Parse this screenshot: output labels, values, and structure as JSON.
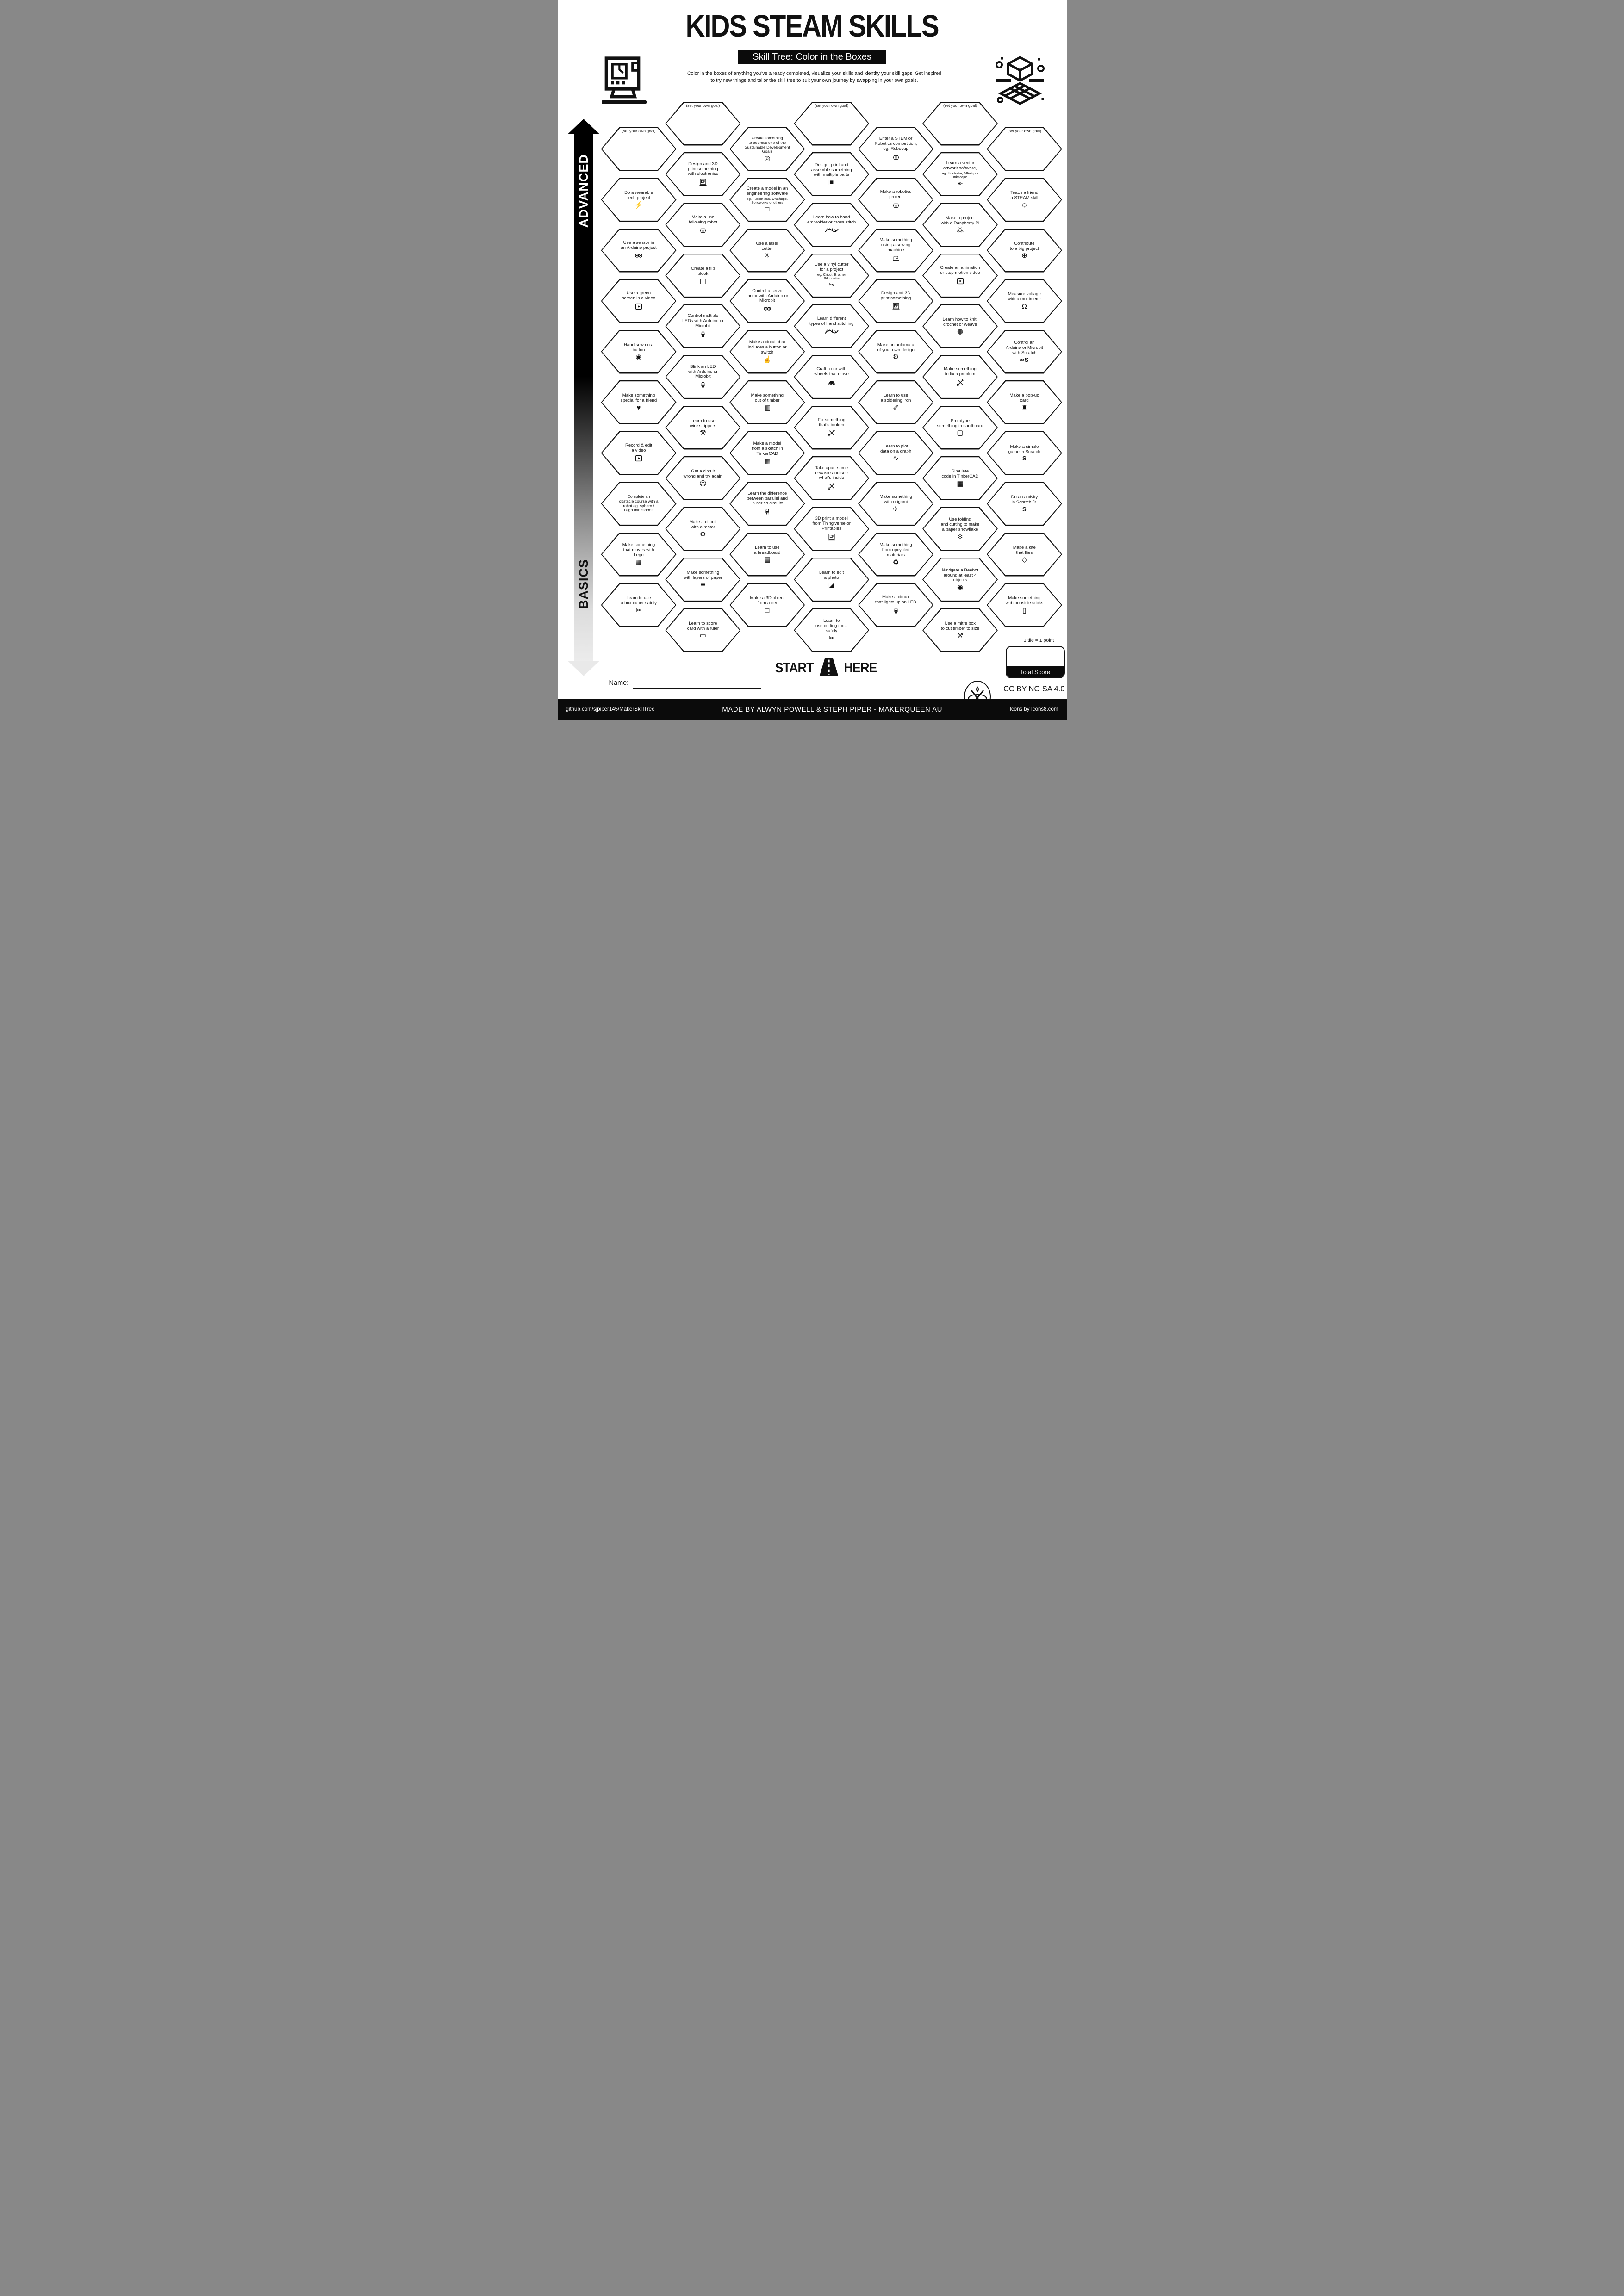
{
  "header": {
    "title": "KIDS STEAM SKILLS",
    "subtitle": "Skill Tree: Color in the Boxes",
    "description_line1": "Color in the boxes of anything you've already completed, visualize your skills and identify your skill gaps.  Get inspired",
    "description_line2": "to try new things and tailor the skill tree to suit your own journey by swapping in your own goals."
  },
  "axis": {
    "advanced_label": "ADVANCED",
    "basics_label": "BASICS"
  },
  "start_here": {
    "start": "START",
    "here": "HERE"
  },
  "name_label": "Name:",
  "score": {
    "tile_note": "1 tile = 1 point",
    "total_label": "Total Score"
  },
  "license": "CC BY-NC-SA 4.0",
  "footer": {
    "github": "github.com/sjpiper145/MakerSkillTree",
    "made_by": "MADE BY ALWYN POWELL & STEPH PIPER  -  MAKERQUEEN AU",
    "icons_credit": "Icons by Icons8.com"
  },
  "colors": {
    "ink": "#111111",
    "paper": "#ffffff"
  },
  "hexes": [
    {
      "col": 0,
      "row": 0,
      "goal": true,
      "label": "(set your own goal)",
      "icon": null
    },
    {
      "col": 0,
      "row": 1,
      "label": "Do a wearable\ntech project",
      "icon": "led-lightning-icon"
    },
    {
      "col": 0,
      "row": 2,
      "label": "Use a sensor in\nan Arduino project",
      "icon": "arduino-icon"
    },
    {
      "col": 0,
      "row": 3,
      "label": "Use a green\nscreen in a video",
      "icon": "video-player-icon"
    },
    {
      "col": 0,
      "row": 4,
      "label": "Hand sew on a\nbutton",
      "icon": "button-icon"
    },
    {
      "col": 0,
      "row": 5,
      "label": "Make something\nspecial for a friend",
      "icon": "ribbon-bow-icon"
    },
    {
      "col": 0,
      "row": 6,
      "label": "Record & edit\na video",
      "icon": "video-player-icon"
    },
    {
      "col": 0,
      "row": 7,
      "label": "Complete an\nobstacle course with a\nrobot eg. sphero /\nLego mindsorms",
      "icon": null
    },
    {
      "col": 0,
      "row": 8,
      "label": "Make something\nthat moves with\nLego",
      "icon": "lego-brick-icon"
    },
    {
      "col": 0,
      "row": 9,
      "label": "Learn to use\na box cutter safely",
      "icon": "box-cutter-icon"
    },
    {
      "col": 1,
      "row": 0,
      "goal": true,
      "label": "(set your own goal)",
      "icon": null
    },
    {
      "col": 1,
      "row": 1,
      "label": "Design and 3D\nprint something\nwith electronics",
      "icon": "led-and-printer-icon"
    },
    {
      "col": 1,
      "row": 2,
      "label": "Make a line\nfollowing robot",
      "icon": "robot-icon"
    },
    {
      "col": 1,
      "row": 3,
      "label": "Create a flip\nblook",
      "icon": "flip-book-icon"
    },
    {
      "col": 1,
      "row": 4,
      "label": "Control multiple\nLEDs with Arduino or\nMicrobit",
      "icon": "leds-icon"
    },
    {
      "col": 1,
      "row": 5,
      "label": "Blink an LED\nwith Arduino or\nMicrobit",
      "icon": "led-arduino-icon"
    },
    {
      "col": 1,
      "row": 6,
      "label": "Learn to use\nwire strippers",
      "icon": "wire-strippers-icon"
    },
    {
      "col": 1,
      "row": 7,
      "label": "Get a circuit\nwrong and try again",
      "icon": "facepalm-icon"
    },
    {
      "col": 1,
      "row": 8,
      "label": "Make a circuit\nwith a motor",
      "icon": "motor-icon"
    },
    {
      "col": 1,
      "row": 9,
      "label": "Make something\nwith layers of paper",
      "icon": "paper-layers-icon"
    },
    {
      "col": 1,
      "row": 10,
      "label": "Learn to score\ncard with a ruler",
      "icon": "ruler-icon"
    },
    {
      "col": 2,
      "row": 0,
      "label": "Create something\nto address one of the\nSustainable Development\nGoals",
      "icon": "sdg-ring-icon"
    },
    {
      "col": 2,
      "row": 1,
      "label": "Create a model in an\nengineering software",
      "sub": "eg. Fusion 360, OnShape,\nSolidworks or others",
      "icon": "cad-cube-icon"
    },
    {
      "col": 2,
      "row": 2,
      "label": "Use a laser\ncutter",
      "icon": "laser-icon"
    },
    {
      "col": 2,
      "row": 3,
      "label": "Control a servo\nmotor with Arduino or\nMicrobit",
      "icon": "arduino-icon"
    },
    {
      "col": 2,
      "row": 4,
      "label": "Make a circuit that\nincludes a button or\nswitch",
      "icon": "press-button-icon"
    },
    {
      "col": 2,
      "row": 5,
      "label": "Make something\nout of timber",
      "icon": "timber-icon"
    },
    {
      "col": 2,
      "row": 6,
      "label": "Make a model\nfrom a sketch in\nTinkerCAD",
      "icon": "tinkercad-icon"
    },
    {
      "col": 2,
      "row": 7,
      "label": "Learn the difference\nbetween parallel and\nin-series circuits",
      "icon": "led-icon"
    },
    {
      "col": 2,
      "row": 8,
      "label": "Learn to use\na breadboard",
      "icon": "breadboard-icon"
    },
    {
      "col": 2,
      "row": 9,
      "label": "Make a 3D object\nfrom a net",
      "icon": "net-cube-icon"
    },
    {
      "col": 3,
      "row": 0,
      "goal": true,
      "label": "(set your own goal)",
      "icon": null
    },
    {
      "col": 3,
      "row": 1,
      "label": "Design, print and\nassemble something\nwith multiple parts",
      "icon": "cubes-icon"
    },
    {
      "col": 3,
      "row": 2,
      "label": "Learn how to hand\nembroider or cross stitch",
      "icon": "stitch-icon"
    },
    {
      "col": 3,
      "row": 3,
      "label": "Use a vinyl cutter\nfor a project",
      "sub": "eg. Cricut, Brother\nSilhouette",
      "icon": "vinyl-cutter-icon"
    },
    {
      "col": 3,
      "row": 4,
      "label": "Learn different\ntypes of hand stitching",
      "icon": "stitch-icon"
    },
    {
      "col": 3,
      "row": 5,
      "label": "Craft a car with\nwheels that move",
      "icon": "car-icon"
    },
    {
      "col": 3,
      "row": 6,
      "label": "Fix something\nthat's broken",
      "icon": "tools-icon"
    },
    {
      "col": 3,
      "row": 7,
      "label": "Take apart some\ne-waste and see\nwhat's inside",
      "icon": "tools-icon"
    },
    {
      "col": 3,
      "row": 8,
      "label": "3D print a model\nfrom Thingiverse or\nPrintables",
      "icon": "printer-3d-icon"
    },
    {
      "col": 3,
      "row": 9,
      "label": "Learn to edit\na photo",
      "icon": "photo-icon"
    },
    {
      "col": 3,
      "row": 10,
      "label": "Learn to\nuse cutting tools\nsafely",
      "icon": "scissors-icon"
    },
    {
      "col": 4,
      "row": 0,
      "label": "Enter a STEM or\nRobotics competition,\neg. Robocup",
      "icon": "robot-icon"
    },
    {
      "col": 4,
      "row": 1,
      "label": "Make a robotics\nproject",
      "icon": "robot-icon"
    },
    {
      "col": 4,
      "row": 2,
      "label": "Make something\nusing a sewing\nmachine",
      "icon": "sewing-machine-icon"
    },
    {
      "col": 4,
      "row": 3,
      "label": "Design and 3D\nprint something",
      "icon": "printer-3d-icon"
    },
    {
      "col": 4,
      "row": 4,
      "label": "Make an automata\nof your own design",
      "icon": "gears-icon"
    },
    {
      "col": 4,
      "row": 5,
      "label": "Learn to use\na soldering iron",
      "icon": "soldering-iron-icon"
    },
    {
      "col": 4,
      "row": 6,
      "label": "Learn to plot\ndata on a graph",
      "icon": "graph-icon"
    },
    {
      "col": 4,
      "row": 7,
      "label": "Make something\nwith origami",
      "icon": "origami-icon"
    },
    {
      "col": 4,
      "row": 8,
      "label": "Make something\nfrom upcycled\nmaterials",
      "icon": "recycle-icon"
    },
    {
      "col": 4,
      "row": 9,
      "label": "Make a circuit\nthat lights up an LED",
      "icon": "led-icon"
    },
    {
      "col": 5,
      "row": 0,
      "goal": true,
      "label": "(set your own goal)",
      "icon": null
    },
    {
      "col": 5,
      "row": 1,
      "label": "Learn a vector\nartwork software,",
      "sub": "eg. Illustrator, Affinity or\nInkscape",
      "icon": "pen-nib-icon"
    },
    {
      "col": 5,
      "row": 2,
      "label": "Make a project\nwith a Raspberry Pi",
      "icon": "raspberry-pi-icon"
    },
    {
      "col": 5,
      "row": 3,
      "label": "Create an animation\nor stop motion video",
      "icon": "animation-icon"
    },
    {
      "col": 5,
      "row": 4,
      "label": "Learn how to knit,\ncrochet or weave",
      "icon": "yarn-icon"
    },
    {
      "col": 5,
      "row": 5,
      "label": "Make something\nto fix a problem",
      "icon": "tools-icon"
    },
    {
      "col": 5,
      "row": 6,
      "label": "Prototype\nsomething in cardboard",
      "icon": "cardboard-box-icon"
    },
    {
      "col": 5,
      "row": 7,
      "label": "Simulate\ncode in TinkerCAD",
      "icon": "tinkercad-icon"
    },
    {
      "col": 5,
      "row": 8,
      "label": "Use folding\nand cutting to make\na paper snowflake",
      "icon": "snowflake-icon"
    },
    {
      "col": 5,
      "row": 9,
      "label": "Navigate a Beebot\naround at least 4\nobjects",
      "icon": "beebot-icon"
    },
    {
      "col": 5,
      "row": 10,
      "label": "Use a mitre box\nto cut timber to size",
      "icon": "mitre-box-icon"
    },
    {
      "col": 6,
      "row": 0,
      "goal": true,
      "label": "(set your own goal)",
      "icon": null
    },
    {
      "col": 6,
      "row": 1,
      "label": "Teach a friend\na STEAM skill",
      "icon": "teach-friends-icon"
    },
    {
      "col": 6,
      "row": 2,
      "label": "Contribute\nto a big project",
      "icon": "globe-icon"
    },
    {
      "col": 6,
      "row": 3,
      "label": "Measure voltage\nwith a multimeter",
      "icon": "multimeter-icon"
    },
    {
      "col": 6,
      "row": 4,
      "label": "Control an\nArduino or Microbit\nwith Scratch",
      "icon": "arduino-scratch-icon"
    },
    {
      "col": 6,
      "row": 5,
      "label": "Make a pop-up\ncard",
      "icon": "popup-card-icon"
    },
    {
      "col": 6,
      "row": 6,
      "label": "Make a simple\ngame in Scratch",
      "icon": "scratch-icon"
    },
    {
      "col": 6,
      "row": 7,
      "label": "Do an activity\nin Scratch Jr.",
      "icon": "scratch-icon"
    },
    {
      "col": 6,
      "row": 8,
      "label": "Make a kite\nthat flies",
      "icon": "kite-icon"
    },
    {
      "col": 6,
      "row": 9,
      "label": "Make something\nwith popsicle sticks",
      "icon": "popsicle-icon"
    }
  ]
}
